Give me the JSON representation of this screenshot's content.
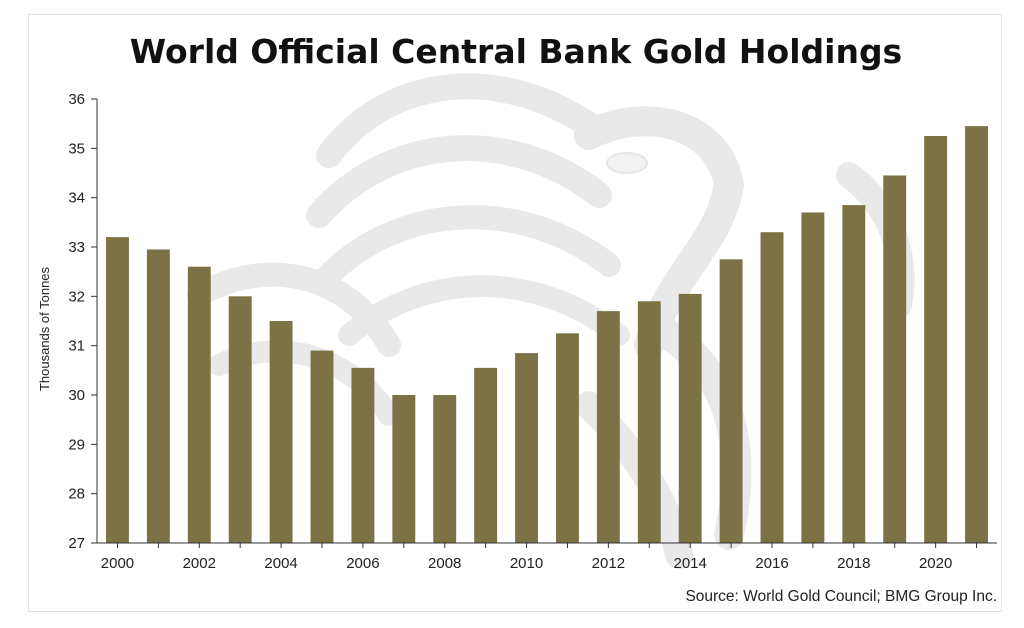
{
  "chart_data": {
    "type": "bar",
    "title": "World Official Central Bank Gold Holdings",
    "xlabel": "",
    "ylabel": "Thousands of Tonnes",
    "source": "Source: World Gold Council; BMG Group Inc.",
    "ylim": [
      27,
      36
    ],
    "yticks": [
      27,
      28,
      29,
      30,
      31,
      32,
      33,
      34,
      35,
      36
    ],
    "categories": [
      "2000",
      "2001",
      "2002",
      "2003",
      "2004",
      "2005",
      "2006",
      "2007",
      "2008",
      "2009",
      "2010",
      "2011",
      "2012",
      "2013",
      "2014",
      "2015",
      "2016",
      "2017",
      "2018",
      "2019",
      "2020",
      "2021"
    ],
    "xtick_labels": [
      "2000",
      "2002",
      "2004",
      "2006",
      "2008",
      "2010",
      "2012",
      "2014",
      "2016",
      "2018",
      "2020"
    ],
    "values": [
      33.2,
      32.95,
      32.6,
      32.0,
      31.5,
      30.9,
      30.55,
      30.0,
      30.0,
      30.55,
      30.85,
      31.25,
      31.7,
      31.9,
      32.05,
      32.75,
      33.3,
      33.7,
      33.85,
      34.45,
      35.25,
      35.45
    ],
    "bar_color": "#7b7245",
    "grid": false,
    "legend": "none"
  }
}
